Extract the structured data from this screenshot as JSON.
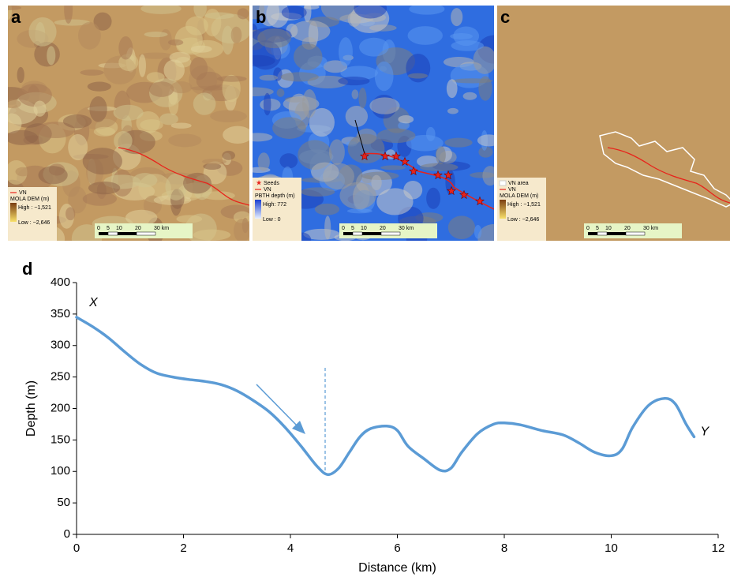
{
  "panels": [
    {
      "label": "a",
      "legend": [
        "VN",
        "MOLA DEM (m)",
        "High : −1,521",
        "Low : −2,646"
      ],
      "scale": [
        "0",
        "5",
        "10",
        "20",
        "30 km"
      ]
    },
    {
      "label": "b",
      "legend": [
        "Seeds",
        "VN",
        "PBTH depth (m)",
        "High: 772",
        "Low : 0"
      ],
      "scale": [
        "0",
        "5",
        "10",
        "20",
        "30 km"
      ]
    },
    {
      "label": "c",
      "legend": [
        "VN area",
        "VN",
        "MOLA DEM (m)",
        "High : −1,521",
        "Low : −2,646"
      ],
      "scale": [
        "0",
        "5",
        "10",
        "20",
        "30 km"
      ]
    }
  ],
  "chart_data": {
    "type": "line",
    "label": "d",
    "x_label": "Distance (km)",
    "y_label": "Depth (m)",
    "x": [
      0,
      0.3,
      0.6,
      0.9,
      1.2,
      1.5,
      1.8,
      2.1,
      2.4,
      2.7,
      3.0,
      3.3,
      3.6,
      3.9,
      4.2,
      4.5,
      4.7,
      4.9,
      5.1,
      5.3,
      5.5,
      5.8,
      6.0,
      6.2,
      6.5,
      6.8,
      7.0,
      7.2,
      7.5,
      7.8,
      8.0,
      8.3,
      8.7,
      9.1,
      9.4,
      9.7,
      10.0,
      10.2,
      10.4,
      10.7,
      11.0,
      11.2,
      11.4,
      11.55
    ],
    "values": [
      345,
      330,
      312,
      290,
      270,
      256,
      250,
      246,
      243,
      238,
      228,
      213,
      195,
      170,
      140,
      108,
      95,
      105,
      130,
      155,
      168,
      172,
      165,
      140,
      120,
      102,
      105,
      130,
      160,
      175,
      177,
      174,
      165,
      158,
      145,
      130,
      125,
      135,
      170,
      205,
      216,
      207,
      175,
      155
    ],
    "color": "#5b9bd5",
    "start_label": "X",
    "end_label": "Y",
    "xlim": [
      0,
      12
    ],
    "xticks": [
      0,
      2,
      4,
      6,
      8,
      10,
      12
    ],
    "ylim": [
      0,
      400
    ],
    "yticks": [
      0,
      50,
      100,
      150,
      200,
      250,
      300,
      350,
      400
    ]
  }
}
